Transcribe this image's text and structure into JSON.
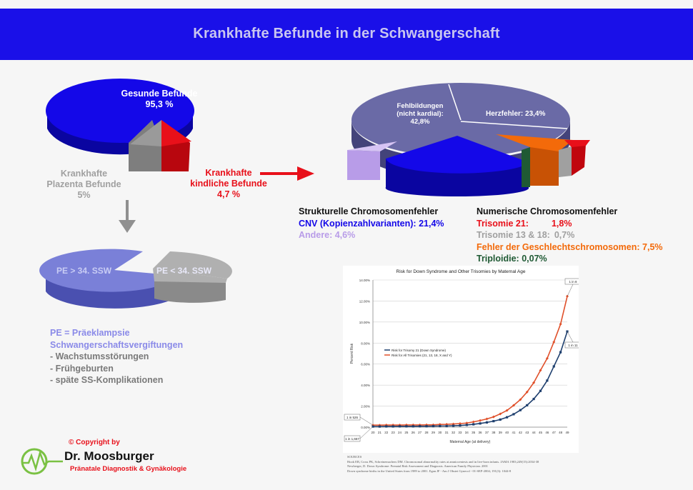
{
  "header": {
    "title": "Krankhafte Befunde in der Schwangerschaft"
  },
  "left_pie": {
    "label_main_1": "Gesunde Befunde",
    "label_main_2": "95,3 %",
    "label_plazenta_1": "Krankhafte",
    "label_plazenta_2": "Plazenta Befunde",
    "label_plazenta_3": "5%",
    "label_kindlich_1": "Krankhafte",
    "label_kindlich_2": "kindliche Befunde",
    "label_kindlich_3": "4,7 %"
  },
  "right_pie": {
    "label_fehlbildungen_1": "Fehlbildungen",
    "label_fehlbildungen_2": "(nicht kardial):",
    "label_fehlbildungen_3": "42,8%",
    "label_herzfehler": "Herzfehler: 23,4%"
  },
  "pe_pie": {
    "label_gt": "PE > 34. SSW",
    "label_lt": "PE < 34. SSW"
  },
  "structural": {
    "title": "Strukturelle Chromosomenfehler",
    "cnv": "CNV (Kopienzahlvarianten): 21,4%",
    "andere": "Andere: 4,6%"
  },
  "numerical": {
    "title": "Numerische Chromosomenfehler",
    "tri21_label": "Trisomie 21:",
    "tri21_value": "1,8%",
    "tri13_label": "Trisomie 13 & 18:",
    "tri13_value": "0,7%",
    "geschlecht": "Fehler der Geschlechtschromosomen: 7,5%",
    "triploidie": "Triploidie: 0,07%"
  },
  "pe_notes": {
    "line1": "PE = Präeklampsie",
    "line2": "Schwangerschaftsvergiftungen",
    "line3": "- Wachstumsstörungen",
    "line4": "- Frühgeburten",
    "line5": "- späte SS-Komplikationen"
  },
  "copyright": {
    "line1": "© Copyright by",
    "name": "Dr. Moosburger",
    "sub": "Pränatale Diagnostik & Gynäkologie"
  },
  "colors": {
    "header": "#1a10e8",
    "blue": "#1408e8",
    "red": "#e8101a",
    "gray": "#8c8c8c",
    "slate": "#6a6aa6",
    "lavender": "#b89ce8",
    "orange": "#f36a0a",
    "darkgreen": "#1f5a34",
    "lightgray_text": "#a0a0a0"
  },
  "chart_data": [
    {
      "type": "pie",
      "slices": [
        {
          "label": "Gesunde Befunde",
          "value": 95.3,
          "color": "#1408e8"
        },
        {
          "label": "Krankhafte Plazenta Befunde",
          "value": 5,
          "color": "#8c8c8c"
        },
        {
          "label": "Krankhafte kindliche Befunde",
          "value": 4.7,
          "color": "#e8101a"
        }
      ]
    },
    {
      "type": "pie",
      "slices": [
        {
          "label": "Fehlbildungen (nicht kardial)",
          "value": 42.8,
          "color": "#6a6aa6"
        },
        {
          "label": "Herzfehler",
          "value": 23.4,
          "color": "#6a6aa6"
        },
        {
          "label": "CNV (Kopienzahlvarianten)",
          "value": 21.4,
          "color": "#1408e8"
        },
        {
          "label": "Andere",
          "value": 4.6,
          "color": "#b89ce8"
        },
        {
          "label": "Fehler der Geschlechtschromosomen",
          "value": 7.5,
          "color": "#f36a0a"
        },
        {
          "label": "Trisomie 21",
          "value": 1.8,
          "color": "#e8101a"
        },
        {
          "label": "Trisomie 13 & 18",
          "value": 0.7,
          "color": "#a0a0a0"
        },
        {
          "label": "Triploidie",
          "value": 0.07,
          "color": "#1f5a34"
        }
      ]
    },
    {
      "type": "pie",
      "slices": [
        {
          "label": "PE > 34. SSW",
          "value": 85,
          "color": "#7a80d8"
        },
        {
          "label": "PE < 34. SSW",
          "value": 15,
          "color": "#b0b0b0"
        }
      ]
    },
    {
      "type": "line",
      "title": "Risk for Down Syndrome and Other Trisomies by Maternal Age",
      "xlabel": "Maternal Age (at delivery)",
      "ylabel": "Percent Risk",
      "x": [
        20,
        21,
        22,
        23,
        24,
        25,
        26,
        27,
        28,
        29,
        30,
        31,
        32,
        33,
        34,
        35,
        36,
        37,
        38,
        39,
        40,
        41,
        42,
        43,
        44,
        45,
        46,
        47,
        48,
        49
      ],
      "ylim": [
        0,
        14
      ],
      "yticks": [
        "0.00%",
        "2.00%",
        "4.00%",
        "6.00%",
        "8.00%",
        "10.00%",
        "12.00%",
        "14.00%"
      ],
      "grid": true,
      "legend": "left",
      "series": [
        {
          "name": "Risk for Trisomy 21 (Down Syndrome)",
          "color": "#1e3f6e",
          "values": [
            0.06,
            0.06,
            0.07,
            0.07,
            0.08,
            0.08,
            0.08,
            0.09,
            0.09,
            0.1,
            0.11,
            0.11,
            0.13,
            0.16,
            0.21,
            0.27,
            0.35,
            0.45,
            0.57,
            0.72,
            0.94,
            1.23,
            1.62,
            2.08,
            2.68,
            3.45,
            4.43,
            5.78,
            7.13,
            9.1
          ]
        },
        {
          "name": "Risk for All Trisomies (21, 13, 18, X and Y)",
          "color": "#e0502a",
          "values": [
            0.19,
            0.19,
            0.2,
            0.2,
            0.2,
            0.21,
            0.21,
            0.21,
            0.22,
            0.22,
            0.26,
            0.27,
            0.3,
            0.34,
            0.39,
            0.5,
            0.63,
            0.78,
            0.98,
            1.26,
            1.59,
            2.07,
            2.62,
            3.34,
            4.23,
            5.4,
            6.54,
            8.1,
            9.8,
            12.45
          ]
        }
      ],
      "annotations": [
        "1 in 8",
        "1 in 11",
        "1 in 526",
        "1 in 1,667"
      ]
    }
  ],
  "chart_sources": {
    "heading": "SOURCES",
    "line1": "Hook EB, Cross PK, Schreinemachers DM. Chromosomal abnormality rates at amniocentesis and in live-born infants. JAMA 1983;249(15):2034-38",
    "line2": "Newberger, D. Down Syndrome: Prenatal Risk Assessment and Diagnosis. American Family Physician. 2001",
    "line3": "Down syndrome births in the United States from 1989 to 2001. Egan JF - Am J Obstet Gynecol - 01-SEP-2004; 191(3): 1044-8"
  }
}
